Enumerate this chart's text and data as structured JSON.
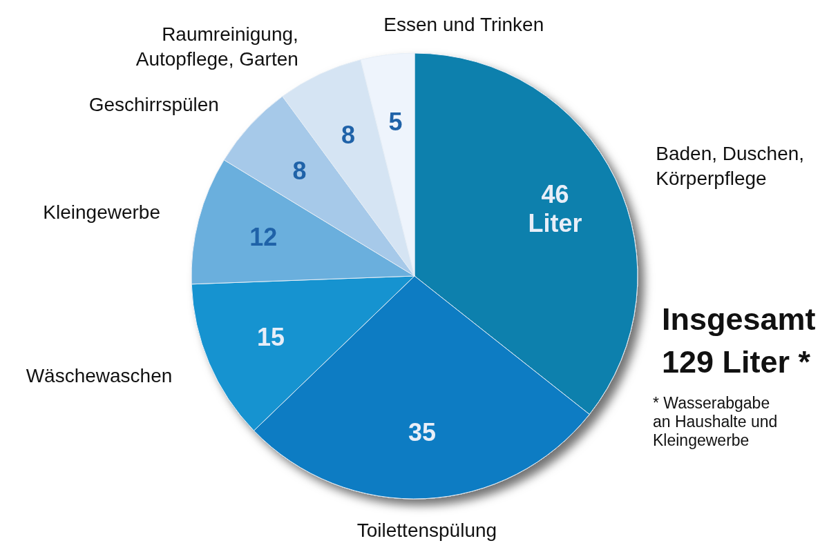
{
  "chart_data": {
    "type": "pie",
    "categories": [
      "Baden, Duschen, Körperpflege",
      "Toilettenspülung",
      "Wäschewaschen",
      "Kleingewerbe",
      "Geschirrspülen",
      "Raumreinigung, Autopflege, Garten",
      "Essen und Trinken"
    ],
    "values": [
      46,
      35,
      15,
      12,
      8,
      8,
      5
    ],
    "colors": [
      "#0e80ad",
      "#0a7cc3",
      "#1493d0",
      "#6aafdd",
      "#a6c9e9",
      "#d5e4f3",
      "#eef4fc"
    ],
    "value_labels": [
      "46 Liter",
      "35",
      "15",
      "12",
      "8",
      "8",
      "5"
    ],
    "annotations": [
      "Insgesamt 129 Liter *",
      "* Wasserabgabe an Haushalte und Kleingewerbe"
    ]
  }
}
